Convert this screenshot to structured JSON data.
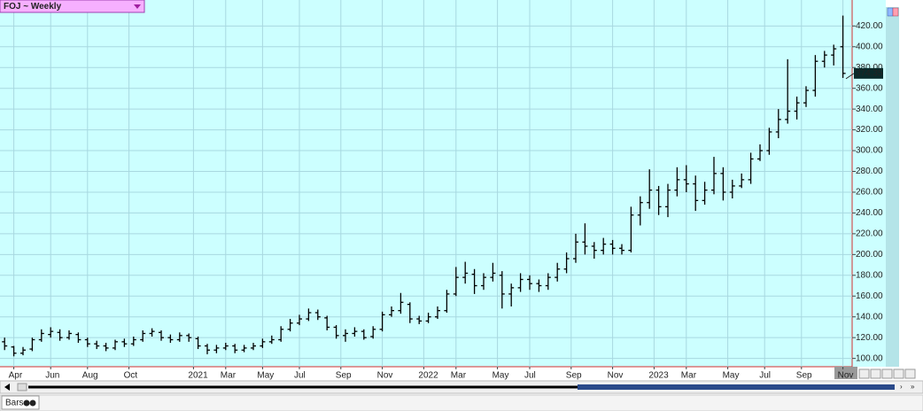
{
  "chart_data": {
    "type": "ohlc",
    "title": "FOJ ~ Weekly",
    "color": "#000000",
    "open": [
      116,
      111,
      105,
      109,
      118,
      123,
      125,
      120,
      123,
      118,
      114,
      112,
      110,
      116,
      114,
      118,
      124,
      125,
      120,
      118,
      122,
      119,
      112,
      108,
      110,
      112,
      108,
      110,
      112,
      116,
      118,
      128,
      134,
      138,
      144,
      139,
      130,
      122,
      124,
      126,
      121,
      128,
      142,
      146,
      152,
      138,
      136,
      140,
      146,
      162,
      178,
      181,
      170,
      178,
      180,
      162,
      168,
      176,
      172,
      170,
      178,
      186,
      196,
      212,
      208,
      204,
      210,
      206,
      204,
      238,
      250,
      262,
      246,
      262,
      272,
      268,
      252,
      262,
      278,
      260,
      266,
      272,
      292,
      300,
      318,
      330,
      338,
      346,
      358,
      386,
      392,
      400
    ],
    "high": [
      120,
      112,
      111,
      120,
      128,
      130,
      128,
      127,
      125,
      120,
      117,
      115,
      118,
      119,
      121,
      127,
      129,
      127,
      123,
      125,
      124,
      121,
      114,
      113,
      115,
      114,
      113,
      115,
      119,
      122,
      131,
      138,
      142,
      148,
      147,
      141,
      132,
      128,
      130,
      128,
      131,
      145,
      150,
      163,
      154,
      141,
      144,
      150,
      166,
      188,
      193,
      186,
      182,
      192,
      184,
      172,
      182,
      180,
      176,
      182,
      192,
      202,
      220,
      230,
      212,
      216,
      214,
      210,
      246,
      256,
      282,
      266,
      268,
      284,
      286,
      276,
      270,
      294,
      284,
      272,
      278,
      298,
      306,
      322,
      340,
      388,
      352,
      362,
      392,
      396,
      402,
      430
    ],
    "low": [
      108,
      102,
      103,
      107,
      116,
      120,
      117,
      118,
      115,
      111,
      109,
      107,
      108,
      111,
      112,
      116,
      121,
      117,
      115,
      116,
      116,
      109,
      104,
      105,
      108,
      105,
      106,
      108,
      110,
      114,
      116,
      126,
      132,
      136,
      137,
      127,
      119,
      116,
      121,
      118,
      119,
      126,
      140,
      143,
      134,
      133,
      134,
      138,
      144,
      160,
      172,
      162,
      166,
      174,
      148,
      150,
      164,
      166,
      164,
      166,
      174,
      182,
      192,
      200,
      196,
      200,
      200,
      200,
      202,
      228,
      244,
      238,
      236,
      256,
      260,
      242,
      248,
      258,
      252,
      254,
      264,
      268,
      290,
      296,
      312,
      326,
      330,
      342,
      352,
      380,
      382,
      370
    ],
    "close": [
      112,
      105,
      108,
      118,
      124,
      126,
      120,
      124,
      118,
      114,
      112,
      110,
      116,
      114,
      118,
      124,
      126,
      120,
      118,
      122,
      120,
      112,
      108,
      110,
      112,
      108,
      110,
      112,
      116,
      118,
      128,
      134,
      138,
      144,
      140,
      130,
      122,
      124,
      126,
      120,
      128,
      142,
      146,
      154,
      138,
      136,
      140,
      146,
      162,
      178,
      182,
      170,
      178,
      182,
      162,
      168,
      176,
      172,
      170,
      178,
      186,
      196,
      212,
      208,
      204,
      210,
      206,
      204,
      238,
      250,
      262,
      246,
      262,
      272,
      268,
      252,
      262,
      278,
      260,
      266,
      272,
      292,
      300,
      318,
      330,
      338,
      346,
      358,
      386,
      392,
      398,
      374.35
    ],
    "xlim": [
      -0.5,
      92
    ],
    "xticks": [
      {
        "value": 1,
        "label": "Apr"
      },
      {
        "value": 5,
        "label": "Jun"
      },
      {
        "value": 9,
        "label": "Aug"
      },
      {
        "value": 13.5,
        "label": "Oct"
      },
      {
        "value": 20.5,
        "label": "2021"
      },
      {
        "value": 24,
        "label": "Mar"
      },
      {
        "value": 28,
        "label": "May"
      },
      {
        "value": 32,
        "label": "Jul"
      },
      {
        "value": 36.5,
        "label": "Sep"
      },
      {
        "value": 41,
        "label": "Nov"
      },
      {
        "value": 45.5,
        "label": "2022"
      },
      {
        "value": 49,
        "label": "Mar"
      },
      {
        "value": 53.5,
        "label": "May"
      },
      {
        "value": 57,
        "label": "Jul"
      },
      {
        "value": 61.5,
        "label": "Sep"
      },
      {
        "value": 66,
        "label": "Nov"
      },
      {
        "value": 70.5,
        "label": "2023"
      },
      {
        "value": 74,
        "label": "Mar"
      },
      {
        "value": 78.5,
        "label": "May"
      },
      {
        "value": 82.5,
        "label": "Jul"
      },
      {
        "value": 86.5,
        "label": "Sep"
      },
      {
        "value": 91,
        "label": "Nov"
      }
    ],
    "ylim": [
      92,
      445
    ],
    "yticks": [
      {
        "value": 100,
        "label": "100.00"
      },
      {
        "value": 120,
        "label": "120.00"
      },
      {
        "value": 140,
        "label": "140.00"
      },
      {
        "value": 160,
        "label": "160.00"
      },
      {
        "value": 180,
        "label": "180.00"
      },
      {
        "value": 200,
        "label": "200.00"
      },
      {
        "value": 220,
        "label": "220.00"
      },
      {
        "value": 240,
        "label": "240.00"
      },
      {
        "value": 260,
        "label": "260.00"
      },
      {
        "value": 280,
        "label": "280.00"
      },
      {
        "value": 300,
        "label": "300.00"
      },
      {
        "value": 320,
        "label": "320.00"
      },
      {
        "value": 340,
        "label": "340.00"
      },
      {
        "value": 360,
        "label": "360.00"
      },
      {
        "value": 380,
        "label": "380.00"
      },
      {
        "value": 400,
        "label": "400.00"
      },
      {
        "value": 420,
        "label": "420.00"
      }
    ],
    "grid": true
  },
  "toolbar": {
    "tab": "Bars"
  }
}
